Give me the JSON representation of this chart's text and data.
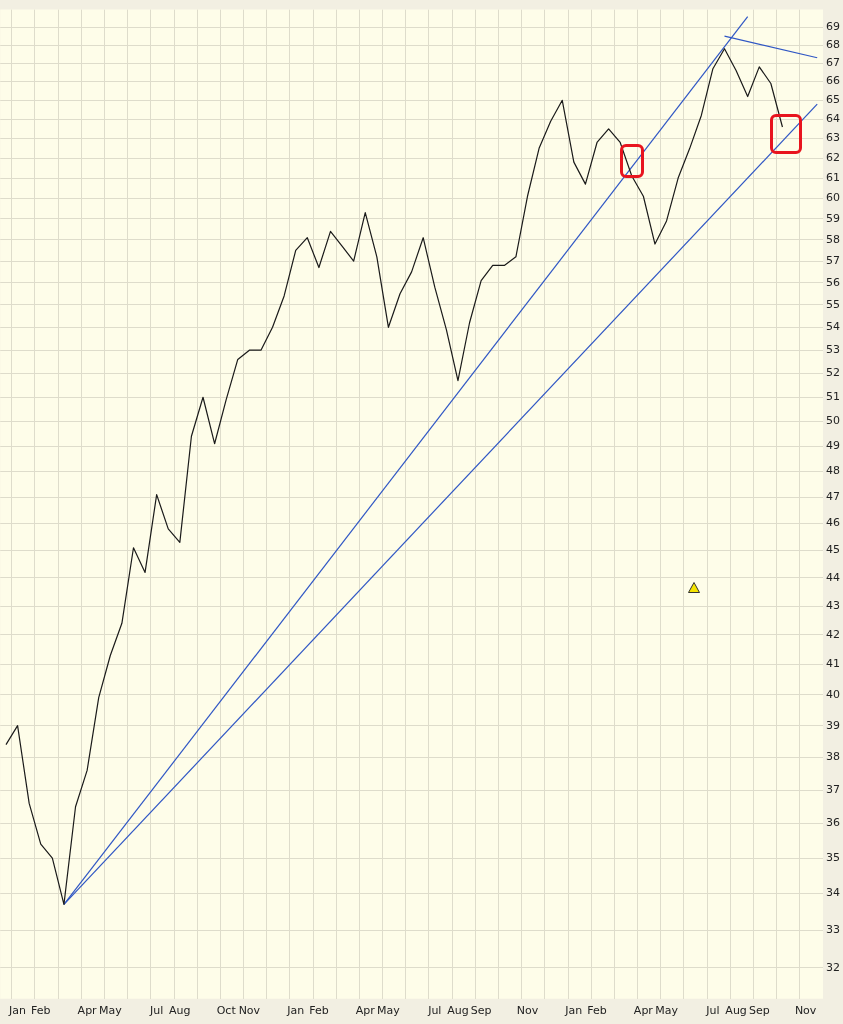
{
  "chart_data": {
    "type": "line",
    "log": "y",
    "grid": true,
    "marker": "none",
    "line_style": "solid",
    "categories": [
      null,
      "Jan",
      null,
      "Feb",
      null,
      null,
      null,
      "Apr",
      null,
      "May",
      null,
      null,
      null,
      "Jul",
      null,
      "Aug",
      null,
      null,
      null,
      "Oct",
      null,
      "Nov",
      null,
      null,
      null,
      "Jan",
      null,
      "Feb",
      null,
      null,
      null,
      "Apr",
      null,
      "May",
      null,
      null,
      null,
      "Jul",
      null,
      "Aug",
      null,
      "Sep",
      null,
      null,
      null,
      "Nov",
      null,
      null,
      null,
      "Jan",
      null,
      "Feb",
      null,
      null,
      null,
      "Apr",
      null,
      "May",
      null,
      null,
      null,
      "Jul",
      null,
      "Aug",
      null,
      "Sep",
      null,
      null,
      null,
      "Nov",
      null
    ],
    "ylim": [
      31.2,
      70
    ],
    "yticks": [
      32,
      33,
      34,
      35,
      36,
      37,
      38,
      39,
      40,
      41,
      42,
      43,
      44,
      45,
      46,
      47,
      48,
      49,
      50,
      51,
      52,
      53,
      54,
      55,
      56,
      57,
      58,
      59,
      60,
      61,
      62,
      63,
      64,
      65,
      66,
      67,
      68,
      69
    ],
    "series": [
      {
        "color": "#1a1a1a",
        "values": [
          38.4,
          39.0,
          36.6,
          35.4,
          35.0,
          33.7,
          36.5,
          37.6,
          39.9,
          41.3,
          42.4,
          45.1,
          44.2,
          47.1,
          45.8,
          45.3,
          49.4,
          51.0,
          49.1,
          50.9,
          52.6,
          53.0,
          53.0,
          54.0,
          55.4,
          57.5,
          58.1,
          56.7,
          58.4,
          57.7,
          57.0,
          59.3,
          57.2,
          54.0,
          55.5,
          56.5,
          58.1,
          55.8,
          53.9,
          51.7,
          54.2,
          56.1,
          56.8,
          56.8,
          57.2,
          60.1,
          62.5,
          63.9,
          65.0,
          61.8,
          60.7,
          62.8,
          63.5,
          62.8,
          61.1,
          60.1,
          57.8,
          58.9,
          61.0,
          62.5,
          64.2,
          66.7,
          67.8,
          66.6,
          65.2,
          66.8,
          65.9,
          63.6,
          null,
          null,
          null
        ]
      },
      {
        "color": "#2f56c4",
        "values": [
          null,
          null,
          null,
          null,
          null,
          33.7,
          null,
          null,
          null,
          null,
          null,
          null,
          null,
          null,
          null,
          null,
          null,
          null,
          null,
          null,
          null,
          null,
          null,
          null,
          null,
          null,
          null,
          null,
          null,
          null,
          null,
          null,
          null,
          null,
          null,
          null,
          null,
          null,
          null,
          null,
          null,
          null,
          null,
          null,
          null,
          null,
          null,
          null,
          null,
          null,
          null,
          null,
          null,
          null,
          null,
          null,
          null,
          null,
          null,
          null,
          null,
          null,
          null,
          null,
          69.6,
          null,
          null,
          null,
          null,
          null,
          null
        ]
      },
      {
        "color": "#2f56c4",
        "values": [
          null,
          null,
          null,
          null,
          null,
          33.7,
          null,
          null,
          null,
          null,
          null,
          null,
          null,
          null,
          null,
          null,
          null,
          null,
          null,
          null,
          null,
          null,
          null,
          null,
          null,
          null,
          null,
          null,
          null,
          null,
          null,
          null,
          null,
          null,
          null,
          null,
          null,
          null,
          null,
          null,
          null,
          null,
          null,
          null,
          null,
          null,
          null,
          null,
          null,
          null,
          null,
          null,
          null,
          null,
          null,
          null,
          null,
          null,
          null,
          null,
          null,
          null,
          null,
          null,
          null,
          null,
          null,
          null,
          null,
          null,
          64.8
        ]
      },
      {
        "color": "#2f56c4",
        "values": [
          null,
          null,
          null,
          null,
          null,
          null,
          null,
          null,
          null,
          null,
          null,
          null,
          null,
          null,
          null,
          null,
          null,
          null,
          null,
          null,
          null,
          null,
          null,
          null,
          null,
          null,
          null,
          null,
          null,
          null,
          null,
          null,
          null,
          null,
          null,
          null,
          null,
          null,
          null,
          null,
          null,
          null,
          null,
          null,
          null,
          null,
          null,
          null,
          null,
          null,
          null,
          null,
          null,
          null,
          null,
          null,
          null,
          null,
          null,
          null,
          null,
          null,
          68.5,
          null,
          null,
          null,
          null,
          null,
          null,
          null,
          67.3
        ]
      }
    ]
  }
}
